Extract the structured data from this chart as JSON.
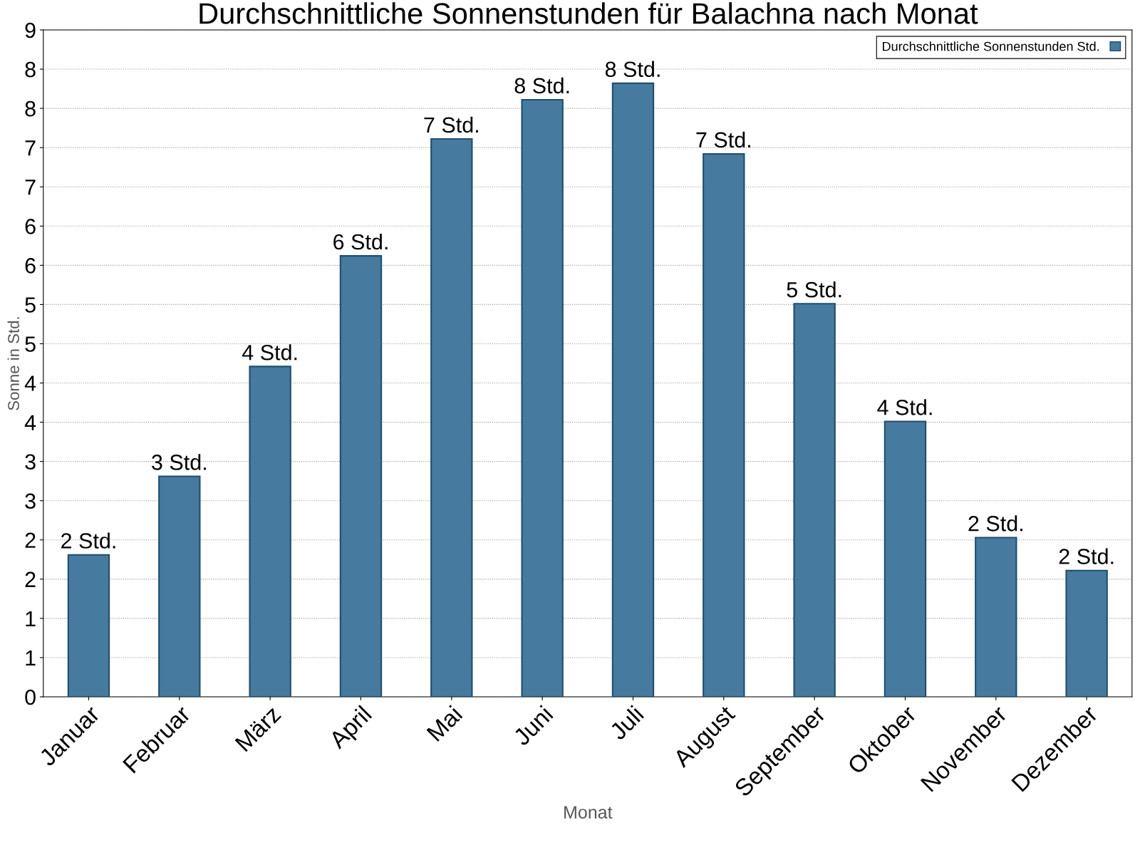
{
  "chart_data": {
    "type": "bar",
    "title": "Durchschnittliche Sonnenstunden für Balachna nach Monat",
    "xlabel": "Monat",
    "ylabel": "Sonne in Std.",
    "categories": [
      "Januar",
      "Februar",
      "März",
      "April",
      "Mai",
      "Juni",
      "Juli",
      "August",
      "September",
      "Oktober",
      "November",
      "Dezember"
    ],
    "series": [
      {
        "name": "Durchschnittliche Sonnenstunden Std.",
        "color": "#467a9e",
        "values": [
          1.81,
          2.81,
          4.21,
          5.62,
          7.11,
          7.61,
          7.82,
          6.92,
          5.01,
          3.51,
          2.03,
          1.61
        ],
        "value_labels": [
          "2 Std.",
          "3 Std.",
          "4 Std.",
          "6 Std.",
          "7 Std.",
          "8 Std.",
          "8 Std.",
          "7 Std.",
          "5 Std.",
          "4 Std.",
          "2 Std.",
          "2 Std."
        ]
      }
    ],
    "ylim": [
      0,
      8.5
    ],
    "yticks": [
      0,
      {
        "value": 0.5,
        "label": "1"
      },
      1,
      {
        "value": 1.5,
        "label": "2"
      },
      2,
      {
        "value": 2.5,
        "label": "3"
      },
      3,
      {
        "value": 3.5,
        "label": "4"
      },
      4,
      {
        "value": 4.5,
        "label": "5"
      },
      5,
      {
        "value": 5.5,
        "label": "6"
      },
      6,
      {
        "value": 6.5,
        "label": "7"
      },
      7,
      {
        "value": 7.5,
        "label": "8"
      },
      8,
      {
        "value": 8.5,
        "label": "9"
      }
    ],
    "grid": "y",
    "legend": "top right"
  }
}
